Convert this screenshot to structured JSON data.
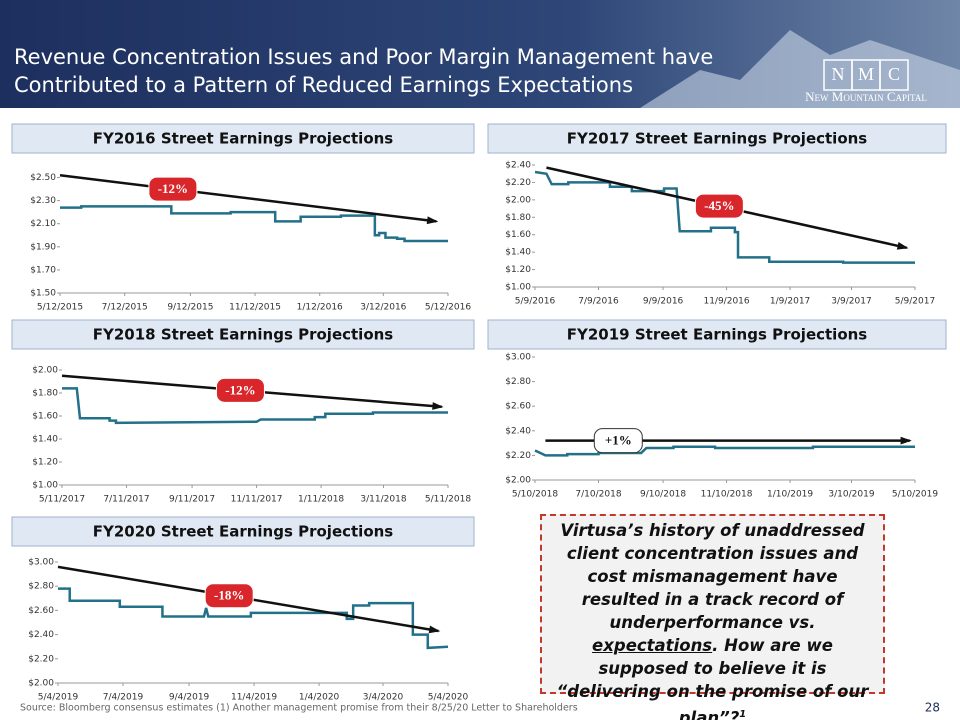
{
  "header": {
    "title_line1": "Revenue Concentration Issues and Poor Margin Management have",
    "title_line2": "Contributed to a Pattern of Reduced Earnings Expectations",
    "logo": [
      "N",
      "M",
      "C"
    ],
    "logo_sub": "New Mountain Capital"
  },
  "chart_data": [
    {
      "type": "line",
      "title": "FY2016 Street Earnings Projections",
      "color": "#23708a",
      "x": [
        "2015-05-12",
        "2015-06-01",
        "2015-06-01",
        "2015-08-25",
        "2015-08-25",
        "2015-10-20",
        "2015-10-20",
        "2015-12-01",
        "2015-12-01",
        "2015-12-25",
        "2015-12-25",
        "2016-02-01",
        "2016-02-01",
        "2016-03-04",
        "2016-03-04",
        "2016-03-08",
        "2016-03-08",
        "2016-03-14",
        "2016-03-14",
        "2016-03-25",
        "2016-03-25",
        "2016-04-01",
        "2016-04-01",
        "2016-05-12"
      ],
      "values": [
        2.24,
        2.24,
        2.25,
        2.25,
        2.19,
        2.19,
        2.2,
        2.2,
        2.12,
        2.12,
        2.16,
        2.16,
        2.17,
        2.17,
        2.0,
        2.0,
        2.02,
        2.02,
        1.98,
        1.98,
        1.97,
        1.97,
        1.95,
        1.95
      ],
      "xlim": [
        "2015-05-12",
        "2016-05-12"
      ],
      "xticks": [
        {
          "value": "2015-05-12",
          "label": "5/12/2015"
        },
        {
          "value": "2015-07-12",
          "label": "7/12/2015"
        },
        {
          "value": "2015-09-12",
          "label": "9/12/2015"
        },
        {
          "value": "2015-11-12",
          "label": "11/12/2015"
        },
        {
          "value": "2016-01-12",
          "label": "1/12/2016"
        },
        {
          "value": "2016-03-12",
          "label": "3/12/2016"
        },
        {
          "value": "2016-05-12",
          "label": "5/12/2016"
        }
      ],
      "ylim": [
        1.5,
        2.6
      ],
      "yticks": [
        {
          "value": 1.5,
          "label": "$1.50"
        },
        {
          "value": 1.7,
          "label": "$1.70"
        },
        {
          "value": 1.9,
          "label": "$1.90"
        },
        {
          "value": 2.1,
          "label": "$2.10"
        },
        {
          "value": 2.3,
          "label": "$2.30"
        },
        {
          "value": 2.5,
          "label": "$2.50"
        }
      ],
      "trend": {
        "x": [
          "2015-05-12",
          "2016-05-01"
        ],
        "values": [
          2.52,
          2.12
        ],
        "label": "-12%"
      }
    },
    {
      "type": "line",
      "title": "FY2017 Street Earnings Projections",
      "color": "#23708a",
      "x": [
        "2016-05-09",
        "2016-05-20",
        "2016-05-25",
        "2016-06-10",
        "2016-06-10",
        "2016-07-20",
        "2016-07-20",
        "2016-08-10",
        "2016-08-10",
        "2016-09-10",
        "2016-09-10",
        "2016-09-22",
        "2016-09-25",
        "2016-10-25",
        "2016-10-25",
        "2016-11-17",
        "2016-11-17",
        "2016-11-20",
        "2016-11-20",
        "2016-12-20",
        "2016-12-20",
        "2017-03-01",
        "2017-03-01",
        "2017-05-09"
      ],
      "values": [
        2.32,
        2.3,
        2.18,
        2.18,
        2.2,
        2.2,
        2.15,
        2.15,
        2.1,
        2.1,
        2.13,
        2.13,
        1.64,
        1.64,
        1.68,
        1.68,
        1.63,
        1.63,
        1.34,
        1.34,
        1.29,
        1.29,
        1.28,
        1.28
      ],
      "xlim": [
        "2016-05-09",
        "2017-05-09"
      ],
      "xticks": [
        {
          "value": "2016-05-09",
          "label": "5/9/2016"
        },
        {
          "value": "2016-07-09",
          "label": "7/9/2016"
        },
        {
          "value": "2016-09-09",
          "label": "9/9/2016"
        },
        {
          "value": "2016-11-09",
          "label": "11/9/2016"
        },
        {
          "value": "2017-01-09",
          "label": "1/9/2017"
        },
        {
          "value": "2017-03-09",
          "label": "3/9/2017"
        },
        {
          "value": "2017-05-09",
          "label": "5/9/2017"
        }
      ],
      "ylim": [
        1.0,
        2.4
      ],
      "yticks": [
        {
          "value": 1.0,
          "label": "$1.00"
        },
        {
          "value": 1.2,
          "label": "$1.20"
        },
        {
          "value": 1.4,
          "label": "$1.40"
        },
        {
          "value": 1.6,
          "label": "$1.60"
        },
        {
          "value": 1.8,
          "label": "$1.80"
        },
        {
          "value": 2.0,
          "label": "$2.00"
        },
        {
          "value": 2.2,
          "label": "$2.20"
        },
        {
          "value": 2.4,
          "label": "$2.40"
        }
      ],
      "trend": {
        "x": [
          "2016-05-20",
          "2017-05-01"
        ],
        "values": [
          2.37,
          1.45
        ],
        "label": "-45%"
      }
    },
    {
      "type": "line",
      "title": "FY2018 Street Earnings Projections",
      "color": "#23708a",
      "x": [
        "2017-05-11",
        "2017-05-25",
        "2017-05-28",
        "2017-06-25",
        "2017-06-25",
        "2017-07-01",
        "2017-07-01",
        "2017-11-11",
        "2017-11-15",
        "2018-01-05",
        "2018-01-05",
        "2018-01-15",
        "2018-01-15",
        "2018-03-01",
        "2018-03-01",
        "2018-05-11"
      ],
      "values": [
        1.84,
        1.84,
        1.58,
        1.58,
        1.56,
        1.56,
        1.54,
        1.55,
        1.57,
        1.57,
        1.59,
        1.59,
        1.62,
        1.62,
        1.63,
        1.63
      ],
      "xlim": [
        "2017-05-11",
        "2018-05-11"
      ],
      "xticks": [
        {
          "value": "2017-05-11",
          "label": "5/11/2017"
        },
        {
          "value": "2017-07-11",
          "label": "7/11/2017"
        },
        {
          "value": "2017-09-11",
          "label": "9/11/2017"
        },
        {
          "value": "2017-11-11",
          "label": "11/11/2017"
        },
        {
          "value": "2018-01-11",
          "label": "1/11/2018"
        },
        {
          "value": "2018-03-11",
          "label": "3/11/2018"
        },
        {
          "value": "2018-05-11",
          "label": "5/11/2018"
        }
      ],
      "ylim": [
        1.0,
        2.0
      ],
      "yticks": [
        {
          "value": 1.0,
          "label": "$1.00"
        },
        {
          "value": 1.2,
          "label": "$1.20"
        },
        {
          "value": 1.4,
          "label": "$1.40"
        },
        {
          "value": 1.6,
          "label": "$1.60"
        },
        {
          "value": 1.8,
          "label": "$1.80"
        },
        {
          "value": 2.0,
          "label": "$2.00"
        }
      ],
      "trend": {
        "x": [
          "2017-05-11",
          "2018-05-05"
        ],
        "values": [
          1.95,
          1.68
        ],
        "label": "-12%"
      }
    },
    {
      "type": "line",
      "title": "FY2019 Street Earnings Projections",
      "color": "#23708a",
      "x": [
        "2018-05-10",
        "2018-05-20",
        "2018-06-10",
        "2018-06-10",
        "2018-07-10",
        "2018-07-10",
        "2018-08-20",
        "2018-08-25",
        "2018-09-20",
        "2018-09-20",
        "2018-10-30",
        "2018-10-30",
        "2019-02-01",
        "2019-02-01",
        "2019-05-10"
      ],
      "values": [
        2.24,
        2.2,
        2.2,
        2.21,
        2.21,
        2.22,
        2.22,
        2.26,
        2.26,
        2.27,
        2.27,
        2.26,
        2.26,
        2.27,
        2.27
      ],
      "xlim": [
        "2018-05-10",
        "2019-05-10"
      ],
      "xticks": [
        {
          "value": "2018-05-10",
          "label": "5/10/2018"
        },
        {
          "value": "2018-07-10",
          "label": "7/10/2018"
        },
        {
          "value": "2018-09-10",
          "label": "9/10/2018"
        },
        {
          "value": "2018-11-10",
          "label": "11/10/2018"
        },
        {
          "value": "2019-01-10",
          "label": "1/10/2019"
        },
        {
          "value": "2019-03-10",
          "label": "3/10/2019"
        },
        {
          "value": "2019-05-10",
          "label": "5/10/2019"
        }
      ],
      "ylim": [
        2.0,
        3.0
      ],
      "yticks": [
        {
          "value": 2.0,
          "label": "$2.00"
        },
        {
          "value": 2.2,
          "label": "$2.20"
        },
        {
          "value": 2.4,
          "label": "$2.40"
        },
        {
          "value": 2.6,
          "label": "$2.60"
        },
        {
          "value": 2.8,
          "label": "$2.80"
        },
        {
          "value": 3.0,
          "label": "$3.00"
        }
      ],
      "trend": {
        "x": [
          "2018-05-20",
          "2019-05-05"
        ],
        "values": [
          2.32,
          2.32
        ],
        "label": "+1%"
      }
    },
    {
      "type": "line",
      "title": "FY2020 Street Earnings Projections",
      "color": "#23708a",
      "x": [
        "2019-05-04",
        "2019-05-15",
        "2019-05-15",
        "2019-07-01",
        "2019-07-01",
        "2019-08-10",
        "2019-08-10",
        "2019-09-18",
        "2019-09-20",
        "2019-09-22",
        "2019-11-01",
        "2019-11-01",
        "2020-01-30",
        "2020-01-30",
        "2020-02-05",
        "2020-02-05",
        "2020-02-20",
        "2020-02-20",
        "2020-04-01",
        "2020-04-01",
        "2020-04-15",
        "2020-04-15",
        "2020-05-04"
      ],
      "values": [
        2.78,
        2.78,
        2.68,
        2.68,
        2.63,
        2.63,
        2.55,
        2.55,
        2.62,
        2.55,
        2.55,
        2.58,
        2.58,
        2.53,
        2.53,
        2.64,
        2.64,
        2.66,
        2.66,
        2.4,
        2.4,
        2.29,
        2.3
      ],
      "xlim": [
        "2019-05-04",
        "2020-05-04"
      ],
      "xticks": [
        {
          "value": "2019-05-04",
          "label": "5/4/2019"
        },
        {
          "value": "2019-07-04",
          "label": "7/4/2019"
        },
        {
          "value": "2019-09-04",
          "label": "9/4/2019"
        },
        {
          "value": "2019-11-04",
          "label": "11/4/2019"
        },
        {
          "value": "2020-01-04",
          "label": "1/4/2020"
        },
        {
          "value": "2020-03-04",
          "label": "3/4/2020"
        },
        {
          "value": "2020-05-04",
          "label": "5/4/2020"
        }
      ],
      "ylim": [
        2.0,
        3.0
      ],
      "yticks": [
        {
          "value": 2.0,
          "label": "$2.00"
        },
        {
          "value": 2.2,
          "label": "$2.20"
        },
        {
          "value": 2.4,
          "label": "$2.40"
        },
        {
          "value": 2.6,
          "label": "$2.60"
        },
        {
          "value": 2.8,
          "label": "$2.80"
        },
        {
          "value": 3.0,
          "label": "$3.00"
        }
      ],
      "trend": {
        "x": [
          "2019-05-04",
          "2020-04-25"
        ],
        "values": [
          2.96,
          2.43
        ],
        "label": "-18%"
      }
    }
  ],
  "callout": {
    "text": "Virtusa’s history of unaddressed client concentration issues and cost mismanagement have resulted in a track record of underperformance vs. ",
    "underlined": "expectations",
    "text_2": ". How are we supposed to believe it is “delivering on the promise of our plan”?",
    "superscript": "1"
  },
  "footer": "Source: Bloomberg consensus estimates (1) Another management promise from their 8/25/20 Letter to Shareholders",
  "page_number": "28"
}
